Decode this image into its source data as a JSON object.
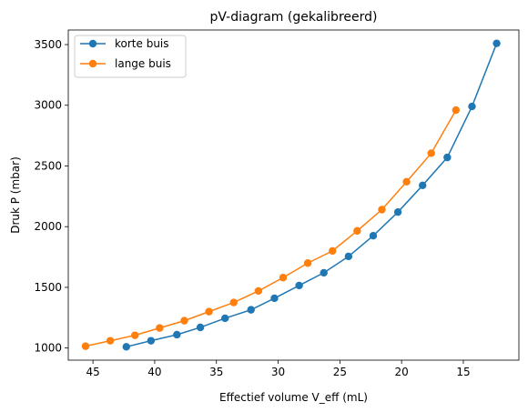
{
  "chart_data": {
    "type": "line",
    "title": "pV-diagram (gekalibreerd)",
    "xlabel": "Effectief volume V_eff (mL)",
    "ylabel": "Druk P (mbar)",
    "xlim": [
      47.0,
      10.5
    ],
    "ylim": [
      900,
      3620
    ],
    "x_reversed": true,
    "xticks": [
      45,
      40,
      35,
      30,
      25,
      20,
      15
    ],
    "yticks": [
      1000,
      1500,
      2000,
      2500,
      3000,
      3500
    ],
    "grid": false,
    "legend_position": "top-left",
    "series": [
      {
        "name": "korte buis",
        "color": "#1f77b4",
        "marker": "circle",
        "x": [
          42.3,
          40.3,
          38.2,
          36.3,
          34.3,
          32.2,
          30.3,
          28.3,
          26.3,
          24.3,
          22.3,
          20.3,
          18.3,
          16.3,
          14.3,
          12.3
        ],
        "y": [
          1010,
          1060,
          1110,
          1170,
          1245,
          1315,
          1410,
          1515,
          1620,
          1755,
          1925,
          2120,
          2340,
          2570,
          2990,
          3510
        ]
      },
      {
        "name": "lange buis",
        "color": "#ff7f0e",
        "marker": "circle",
        "x": [
          45.6,
          43.6,
          41.6,
          39.6,
          37.6,
          35.6,
          33.6,
          31.6,
          29.6,
          27.6,
          25.6,
          23.6,
          21.6,
          19.6,
          17.6,
          15.6
        ],
        "y": [
          1015,
          1060,
          1105,
          1165,
          1225,
          1300,
          1375,
          1470,
          1580,
          1700,
          1800,
          1965,
          2140,
          2370,
          2605,
          2960
        ]
      }
    ]
  }
}
